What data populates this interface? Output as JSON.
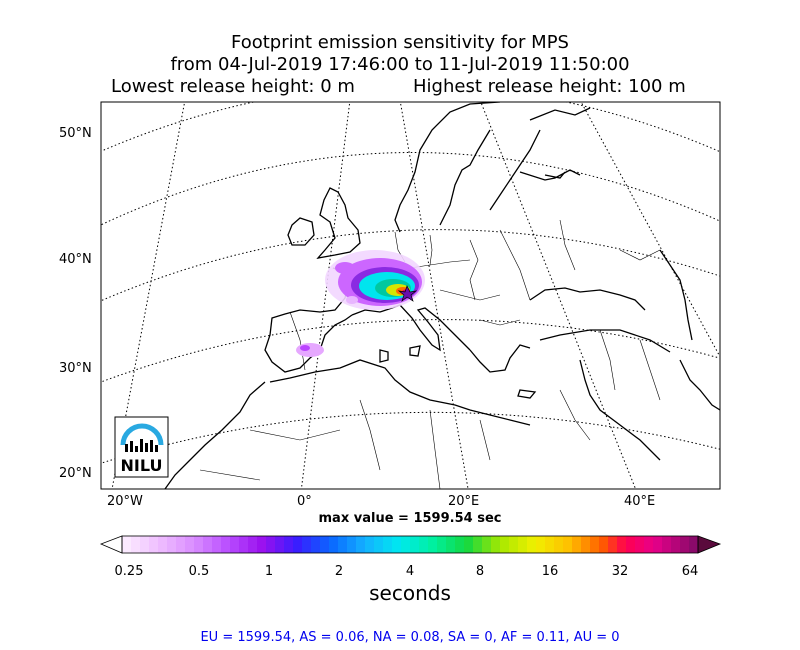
{
  "title": {
    "line1": "Footprint emission sensitivity for MPS",
    "line2": "from 04-Jul-2019 17:46:00 to 11-Jul-2019 11:50:00",
    "lowest": "Lowest release height: 0 m",
    "highest": "Highest release height: 100 m"
  },
  "lat_labels": [
    "50°N",
    "40°N",
    "30°N",
    "20°N"
  ],
  "lon_labels": [
    "20°W",
    "0°",
    "20°E",
    "40°E"
  ],
  "logo": {
    "text": "NILU",
    "arc_color": "#29a9e1"
  },
  "max_value": "max value = 1599.54 sec",
  "colorbar": {
    "ticks": [
      "0.25",
      "0.5",
      "1",
      "2",
      "4",
      "8",
      "16",
      "32",
      "64"
    ],
    "unit": "seconds"
  },
  "footer": "EU = 1599.54,  AS = 0.06,  NA = 0.08,  SA = 0,  AF = 0.11,  AU = 0"
}
